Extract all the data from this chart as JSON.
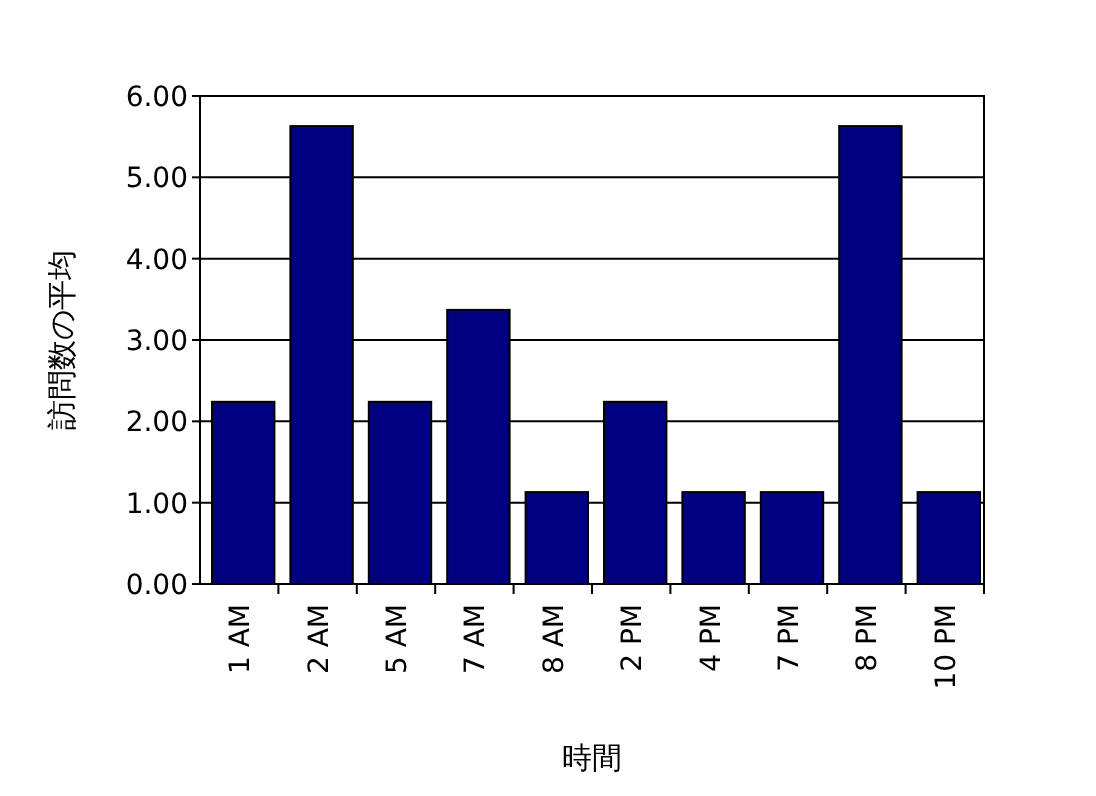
{
  "chart_data": {
    "type": "bar",
    "xlabel": "時間",
    "ylabel": "訪問数の平均",
    "categories": [
      "1 AM",
      "2 AM",
      "5 AM",
      "7 AM",
      "8 AM",
      "2 PM",
      "4 PM",
      "7 PM",
      "8 PM",
      "10 PM"
    ],
    "values": [
      2.24,
      5.63,
      2.24,
      3.37,
      1.13,
      2.24,
      1.13,
      1.13,
      5.63,
      1.13
    ],
    "color": "#000080",
    "ylim": [
      0,
      6
    ],
    "yticks": [
      {
        "value": 0,
        "label": "0.00"
      },
      {
        "value": 1,
        "label": "1.00"
      },
      {
        "value": 2,
        "label": "2.00"
      },
      {
        "value": 3,
        "label": "3.00"
      },
      {
        "value": 4,
        "label": "4.00"
      },
      {
        "value": 5,
        "label": "5.00"
      },
      {
        "value": 6,
        "label": "6.00"
      }
    ],
    "grid": "y"
  }
}
